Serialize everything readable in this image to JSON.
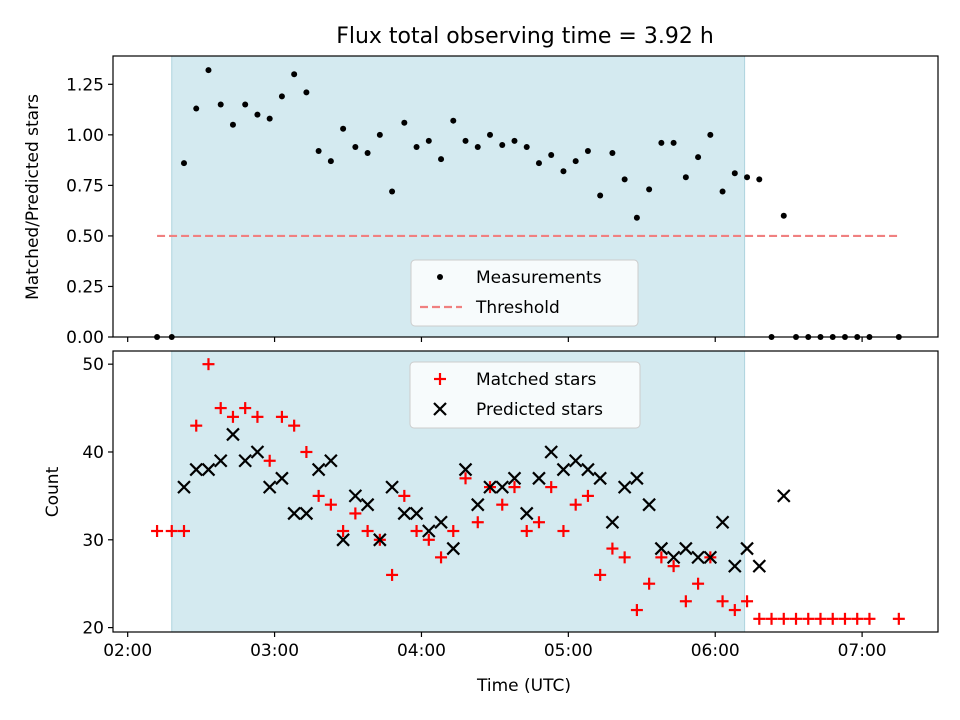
{
  "title": "Flux total observing time = 3.92 h",
  "colors": {
    "shade": "#d4eaf0",
    "shade_edge": "#aed4de",
    "threshold": "#f08080",
    "matched": "#ff0000",
    "predicted": "#000000",
    "measurement": "#000000"
  },
  "chart_data": [
    {
      "type": "scatter",
      "ylabel": "Matched/Predicted stars",
      "xlabel": "",
      "xlim": [
        "01:54",
        "07:31"
      ],
      "ylim": [
        0,
        1.39
      ],
      "yticks": [
        0.0,
        0.25,
        0.5,
        0.75,
        1.0,
        1.25
      ],
      "ytick_labels": [
        "0.00",
        "0.25",
        "0.50",
        "0.75",
        "1.00",
        "1.25"
      ],
      "shaded_interval": [
        "02:18",
        "06:12"
      ],
      "legend": {
        "position": "lower-center",
        "entries": [
          "Measurements",
          "Threshold"
        ]
      },
      "threshold": {
        "name": "Threshold",
        "y": 0.5,
        "x": [
          "02:12",
          "07:15"
        ]
      },
      "series": [
        {
          "name": "Measurements",
          "marker": "dot",
          "points": [
            [
              "02:12",
              0.0
            ],
            [
              "02:18",
              0.0
            ],
            [
              "02:23",
              0.86
            ],
            [
              "02:28",
              1.13
            ],
            [
              "02:33",
              1.32
            ],
            [
              "02:38",
              1.15
            ],
            [
              "02:43",
              1.05
            ],
            [
              "02:48",
              1.15
            ],
            [
              "02:53",
              1.1
            ],
            [
              "02:58",
              1.08
            ],
            [
              "03:03",
              1.19
            ],
            [
              "03:08",
              1.3
            ],
            [
              "03:13",
              1.21
            ],
            [
              "03:18",
              0.92
            ],
            [
              "03:23",
              0.87
            ],
            [
              "03:28",
              1.03
            ],
            [
              "03:33",
              0.94
            ],
            [
              "03:38",
              0.91
            ],
            [
              "03:43",
              1.0
            ],
            [
              "03:48",
              0.72
            ],
            [
              "03:53",
              1.06
            ],
            [
              "03:58",
              0.94
            ],
            [
              "04:03",
              0.97
            ],
            [
              "04:08",
              0.88
            ],
            [
              "04:13",
              1.07
            ],
            [
              "04:18",
              0.97
            ],
            [
              "04:23",
              0.94
            ],
            [
              "04:28",
              1.0
            ],
            [
              "04:33",
              0.95
            ],
            [
              "04:38",
              0.97
            ],
            [
              "04:43",
              0.94
            ],
            [
              "04:48",
              0.86
            ],
            [
              "04:53",
              0.9
            ],
            [
              "04:58",
              0.82
            ],
            [
              "05:03",
              0.87
            ],
            [
              "05:08",
              0.92
            ],
            [
              "05:13",
              0.7
            ],
            [
              "05:18",
              0.91
            ],
            [
              "05:23",
              0.78
            ],
            [
              "05:28",
              0.59
            ],
            [
              "05:33",
              0.73
            ],
            [
              "05:38",
              0.96
            ],
            [
              "05:43",
              0.96
            ],
            [
              "05:48",
              0.79
            ],
            [
              "05:53",
              0.89
            ],
            [
              "05:58",
              1.0
            ],
            [
              "06:03",
              0.72
            ],
            [
              "06:08",
              0.81
            ],
            [
              "06:13",
              0.79
            ],
            [
              "06:18",
              0.78
            ],
            [
              "06:23",
              0.0
            ],
            [
              "06:28",
              0.6
            ],
            [
              "06:33",
              0.0
            ],
            [
              "06:38",
              0.0
            ],
            [
              "06:43",
              0.0
            ],
            [
              "06:48",
              0.0
            ],
            [
              "06:53",
              0.0
            ],
            [
              "06:58",
              0.0
            ],
            [
              "07:03",
              0.0
            ],
            [
              "07:15",
              0.0
            ]
          ]
        }
      ]
    },
    {
      "type": "scatter",
      "ylabel": "Count",
      "xlabel": "Time (UTC)",
      "xlim": [
        "01:54",
        "07:31"
      ],
      "ylim": [
        19.5,
        51.5
      ],
      "yticks": [
        20,
        30,
        40,
        50
      ],
      "ytick_labels": [
        "20",
        "30",
        "40",
        "50"
      ],
      "xticks": [
        "02:00",
        "03:00",
        "04:00",
        "05:00",
        "06:00",
        "07:00"
      ],
      "xtick_labels": [
        "02:00",
        "03:00",
        "04:00",
        "05:00",
        "06:00",
        "07:00"
      ],
      "shaded_interval": [
        "02:18",
        "06:12"
      ],
      "legend": {
        "position": "upper-center",
        "entries": [
          "Matched stars",
          "Predicted stars"
        ]
      },
      "series": [
        {
          "name": "Matched stars",
          "marker": "plus",
          "points": [
            [
              "02:12",
              31
            ],
            [
              "02:18",
              31
            ],
            [
              "02:23",
              31
            ],
            [
              "02:28",
              43
            ],
            [
              "02:33",
              50
            ],
            [
              "02:38",
              45
            ],
            [
              "02:43",
              44
            ],
            [
              "02:48",
              45
            ],
            [
              "02:53",
              44
            ],
            [
              "02:58",
              39
            ],
            [
              "03:03",
              44
            ],
            [
              "03:08",
              43
            ],
            [
              "03:13",
              40
            ],
            [
              "03:18",
              35
            ],
            [
              "03:23",
              34
            ],
            [
              "03:28",
              31
            ],
            [
              "03:33",
              33
            ],
            [
              "03:38",
              31
            ],
            [
              "03:43",
              30
            ],
            [
              "03:48",
              26
            ],
            [
              "03:53",
              35
            ],
            [
              "03:58",
              31
            ],
            [
              "04:03",
              30
            ],
            [
              "04:08",
              28
            ],
            [
              "04:13",
              31
            ],
            [
              "04:18",
              37
            ],
            [
              "04:23",
              32
            ],
            [
              "04:28",
              36
            ],
            [
              "04:33",
              34
            ],
            [
              "04:38",
              36
            ],
            [
              "04:43",
              31
            ],
            [
              "04:48",
              32
            ],
            [
              "04:53",
              36
            ],
            [
              "04:58",
              31
            ],
            [
              "05:03",
              34
            ],
            [
              "05:08",
              35
            ],
            [
              "05:13",
              26
            ],
            [
              "05:18",
              29
            ],
            [
              "05:23",
              28
            ],
            [
              "05:28",
              22
            ],
            [
              "05:33",
              25
            ],
            [
              "05:38",
              28
            ],
            [
              "05:43",
              27
            ],
            [
              "05:48",
              23
            ],
            [
              "05:53",
              25
            ],
            [
              "05:58",
              28
            ],
            [
              "06:03",
              23
            ],
            [
              "06:08",
              22
            ],
            [
              "06:13",
              23
            ],
            [
              "06:18",
              21
            ],
            [
              "06:23",
              21
            ],
            [
              "06:28",
              21
            ],
            [
              "06:33",
              21
            ],
            [
              "06:38",
              21
            ],
            [
              "06:43",
              21
            ],
            [
              "06:48",
              21
            ],
            [
              "06:53",
              21
            ],
            [
              "06:58",
              21
            ],
            [
              "07:03",
              21
            ],
            [
              "07:15",
              21
            ]
          ]
        },
        {
          "name": "Predicted stars",
          "marker": "x",
          "points": [
            [
              "02:23",
              36
            ],
            [
              "02:28",
              38
            ],
            [
              "02:33",
              38
            ],
            [
              "02:38",
              39
            ],
            [
              "02:43",
              42
            ],
            [
              "02:48",
              39
            ],
            [
              "02:53",
              40
            ],
            [
              "02:58",
              36
            ],
            [
              "03:03",
              37
            ],
            [
              "03:08",
              33
            ],
            [
              "03:13",
              33
            ],
            [
              "03:18",
              38
            ],
            [
              "03:23",
              39
            ],
            [
              "03:28",
              30
            ],
            [
              "03:33",
              35
            ],
            [
              "03:38",
              34
            ],
            [
              "03:43",
              30
            ],
            [
              "03:48",
              36
            ],
            [
              "03:53",
              33
            ],
            [
              "03:58",
              33
            ],
            [
              "04:03",
              31
            ],
            [
              "04:08",
              32
            ],
            [
              "04:13",
              29
            ],
            [
              "04:18",
              38
            ],
            [
              "04:23",
              34
            ],
            [
              "04:28",
              36
            ],
            [
              "04:33",
              36
            ],
            [
              "04:38",
              37
            ],
            [
              "04:43",
              33
            ],
            [
              "04:48",
              37
            ],
            [
              "04:53",
              40
            ],
            [
              "04:58",
              38
            ],
            [
              "05:03",
              39
            ],
            [
              "05:08",
              38
            ],
            [
              "05:13",
              37
            ],
            [
              "05:18",
              32
            ],
            [
              "05:23",
              36
            ],
            [
              "05:28",
              37
            ],
            [
              "05:33",
              34
            ],
            [
              "05:38",
              29
            ],
            [
              "05:43",
              28
            ],
            [
              "05:48",
              29
            ],
            [
              "05:53",
              28
            ],
            [
              "05:58",
              28
            ],
            [
              "06:03",
              32
            ],
            [
              "06:08",
              27
            ],
            [
              "06:13",
              29
            ],
            [
              "06:18",
              27
            ],
            [
              "06:28",
              35
            ]
          ]
        }
      ]
    }
  ]
}
